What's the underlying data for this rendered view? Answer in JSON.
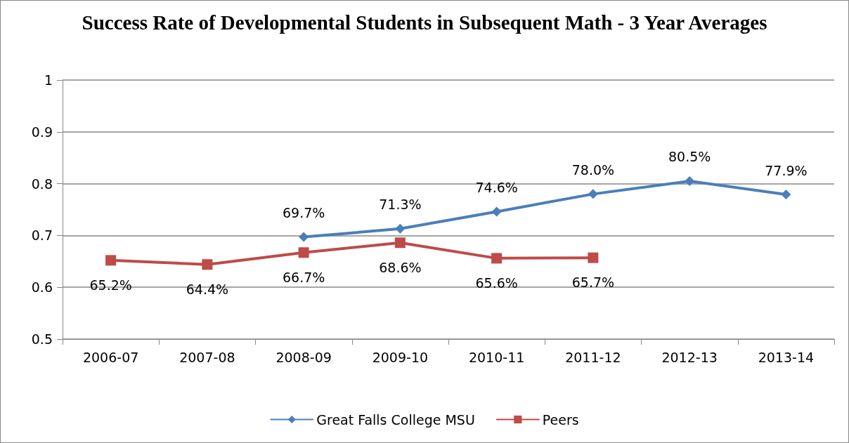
{
  "chart_data": {
    "type": "line",
    "title": "Success Rate of Developmental Students in Subsequent Math - 3 Year Averages",
    "categories": [
      "2006-07",
      "2007-08",
      "2008-09",
      "2009-10",
      "2010-11",
      "2011-12",
      "2012-13",
      "2013-14"
    ],
    "series": [
      {
        "name": "Great Falls College MSU",
        "color": "#4a7ebb",
        "marker": "diamond",
        "values": [
          null,
          null,
          0.697,
          0.713,
          0.746,
          0.78,
          0.805,
          0.779
        ],
        "value_labels": [
          null,
          null,
          "69.7%",
          "71.3%",
          "74.6%",
          "78.0%",
          "80.5%",
          "77.9%"
        ]
      },
      {
        "name": "Peers",
        "color": "#be4b48",
        "marker": "square",
        "values": [
          0.652,
          0.644,
          0.667,
          0.686,
          0.656,
          0.657,
          null,
          null
        ],
        "value_labels": [
          "65.2%",
          "64.4%",
          "66.7%",
          "68.6%",
          "65.6%",
          "65.7%",
          null,
          null
        ]
      }
    ],
    "ylim": [
      0.5,
      1
    ],
    "yticks": [
      0.5,
      0.6,
      0.7,
      0.8,
      0.9,
      1
    ],
    "grid": "y",
    "legend": "bottom",
    "line_style": "solid"
  }
}
